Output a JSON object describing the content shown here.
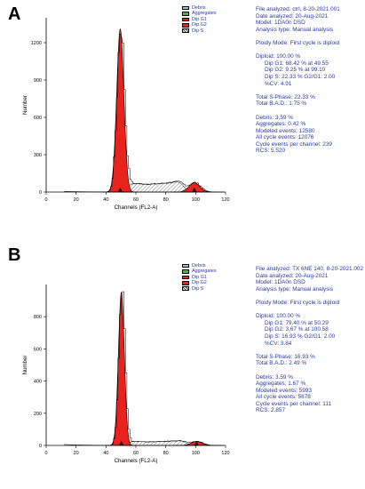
{
  "panels": [
    {
      "letter": "A",
      "legend": [
        {
          "label": "Debris",
          "color": "#9ec4e8",
          "pattern": "solid"
        },
        {
          "label": "Aggregates",
          "color": "#4caf50",
          "pattern": "solid"
        },
        {
          "label": "Dip G1",
          "color": "#e8231e",
          "pattern": "solid"
        },
        {
          "label": "Dip G2",
          "color": "#e8231e",
          "pattern": "solid"
        },
        {
          "label": "Dip S",
          "color": "#ffffff",
          "pattern": "hatch"
        }
      ],
      "stats": {
        "file": "File analyzed: ctrl, 8-20-2021.001",
        "date": "Date analyzed: 20-Aug-2021",
        "model": "Model: 1DA0n  DSD",
        "analysis": "Analysis type: Manual analysis",
        "ploidy": "Ploidy Mode: First cycle is diploid",
        "diploid": "Diploid: 100.00 %",
        "g1": "Dip G1: 68.42 % at 49.55",
        "g2": "Dip G2: 9.25 % at 99.10",
        "s": "Dip S: 22.33 %   G2/G1: 2.00",
        "cv": "%CV: 4.91",
        "total_s": "Total S-Phase: 22.33 %",
        "bad": "Total B.A.D.: 1.75 %",
        "debris": "Debris: 3.59 %",
        "aggregates": "Aggregates: 0.42 %",
        "modeled": "Modeled events: 12580",
        "all_cycle": "All cycle events: 12076",
        "per_channel": "Cycle events per channel: 239",
        "rcs": "RCS: 5.520"
      }
    },
    {
      "letter": "B",
      "legend": [
        {
          "label": "Debris",
          "color": "#9ec4e8",
          "pattern": "solid"
        },
        {
          "label": "Aggregates",
          "color": "#4caf50",
          "pattern": "solid"
        },
        {
          "label": "Dip G1",
          "color": "#e8231e",
          "pattern": "solid"
        },
        {
          "label": "Dip G2",
          "color": "#e8231e",
          "pattern": "solid"
        },
        {
          "label": "Dip S",
          "color": "#ffffff",
          "pattern": "hatch"
        }
      ],
      "stats": {
        "file": "File analyzed: TX 6NE 140, 8-20-2021.002",
        "date": "Date analyzed: 20-Aug-2021",
        "model": "Model: 1DA0n  DSD",
        "analysis": "Analysis type: Manual analysis",
        "ploidy": "Ploidy Mode: First cycle is diploid",
        "diploid": "Diploid: 100.00 %",
        "g1": "Dip G1: 79.40 % at 50.29",
        "g2": "Dip G2: 3.67 % at 100.58",
        "s": "Dip S: 16.93 %   G2/G1: 2.00",
        "cv": "%CV: 3.84",
        "total_s": "Total S-Phase: 16.93 %",
        "bad": "Total B.A.D.: 2.49 %",
        "debris": "Debris: 3.59 %",
        "aggregates": "Aggregates: 1.67 %",
        "modeled": "Modeled events: 5993",
        "all_cycle": "All cycle events: 5678",
        "per_channel": "Cycle events per channel: 111",
        "rcs": "RCS: 2.857"
      }
    }
  ],
  "chart_data": [
    {
      "type": "area",
      "xlabel": "Channels (FL2-A)",
      "ylabel": "Number",
      "xlim": [
        0,
        120
      ],
      "ylim": [
        0,
        1400
      ],
      "xticks": [
        "0",
        "20",
        "40",
        "60",
        "80",
        "100",
        "120"
      ],
      "yticks": [
        "0",
        "300",
        "600",
        "900",
        "1200"
      ],
      "colors": {
        "g1": "#e8231e",
        "g2": "#e8231e",
        "s": "#000000",
        "histogram": "#000000"
      },
      "g1": {
        "mean": 49.55,
        "peak": 1310,
        "sd": 2.4
      },
      "g2": {
        "mean": 99.1,
        "peak": 75,
        "sd": 3.6
      },
      "s_level": 85,
      "series": [
        {
          "name": "Dip G1",
          "x": [
            38,
            42,
            44,
            46,
            47,
            48,
            49,
            49.55,
            50,
            51,
            52,
            53,
            55,
            58,
            62
          ],
          "values": [
            10,
            120,
            380,
            760,
            980,
            1180,
            1290,
            1310,
            1280,
            1150,
            880,
            600,
            220,
            40,
            5
          ]
        },
        {
          "name": "Dip G2",
          "x": [
            88,
            92,
            95,
            97,
            99.1,
            101,
            103,
            106,
            110
          ],
          "values": [
            2,
            15,
            45,
            65,
            75,
            68,
            50,
            18,
            3
          ]
        }
      ]
    },
    {
      "type": "area",
      "xlabel": "Channels (FL2-A)",
      "ylabel": "Number",
      "xlim": [
        0,
        120
      ],
      "ylim": [
        0,
        1000
      ],
      "xticks": [
        "0",
        "20",
        "40",
        "60",
        "80",
        "100",
        "120"
      ],
      "yticks": [
        "0",
        "200",
        "400",
        "600",
        "800"
      ],
      "colors": {
        "g1": "#e8231e",
        "g2": "#e8231e",
        "s": "#000000",
        "histogram": "#000000"
      },
      "g1": {
        "mean": 50.29,
        "peak": 950,
        "sd": 2.0
      },
      "g2": {
        "mean": 100.58,
        "peak": 25,
        "sd": 3.6
      },
      "s_level": 30,
      "series": [
        {
          "name": "Dip G1",
          "x": [
            40,
            44,
            46,
            47,
            48,
            49,
            50.29,
            51,
            52,
            53,
            55,
            58
          ],
          "values": [
            5,
            60,
            200,
            420,
            620,
            820,
            950,
            880,
            640,
            380,
            80,
            5
          ]
        },
        {
          "name": "Dip G2",
          "x": [
            90,
            94,
            97,
            100.58,
            103,
            106,
            110
          ],
          "values": [
            1,
            8,
            18,
            25,
            20,
            8,
            1
          ]
        }
      ]
    }
  ]
}
